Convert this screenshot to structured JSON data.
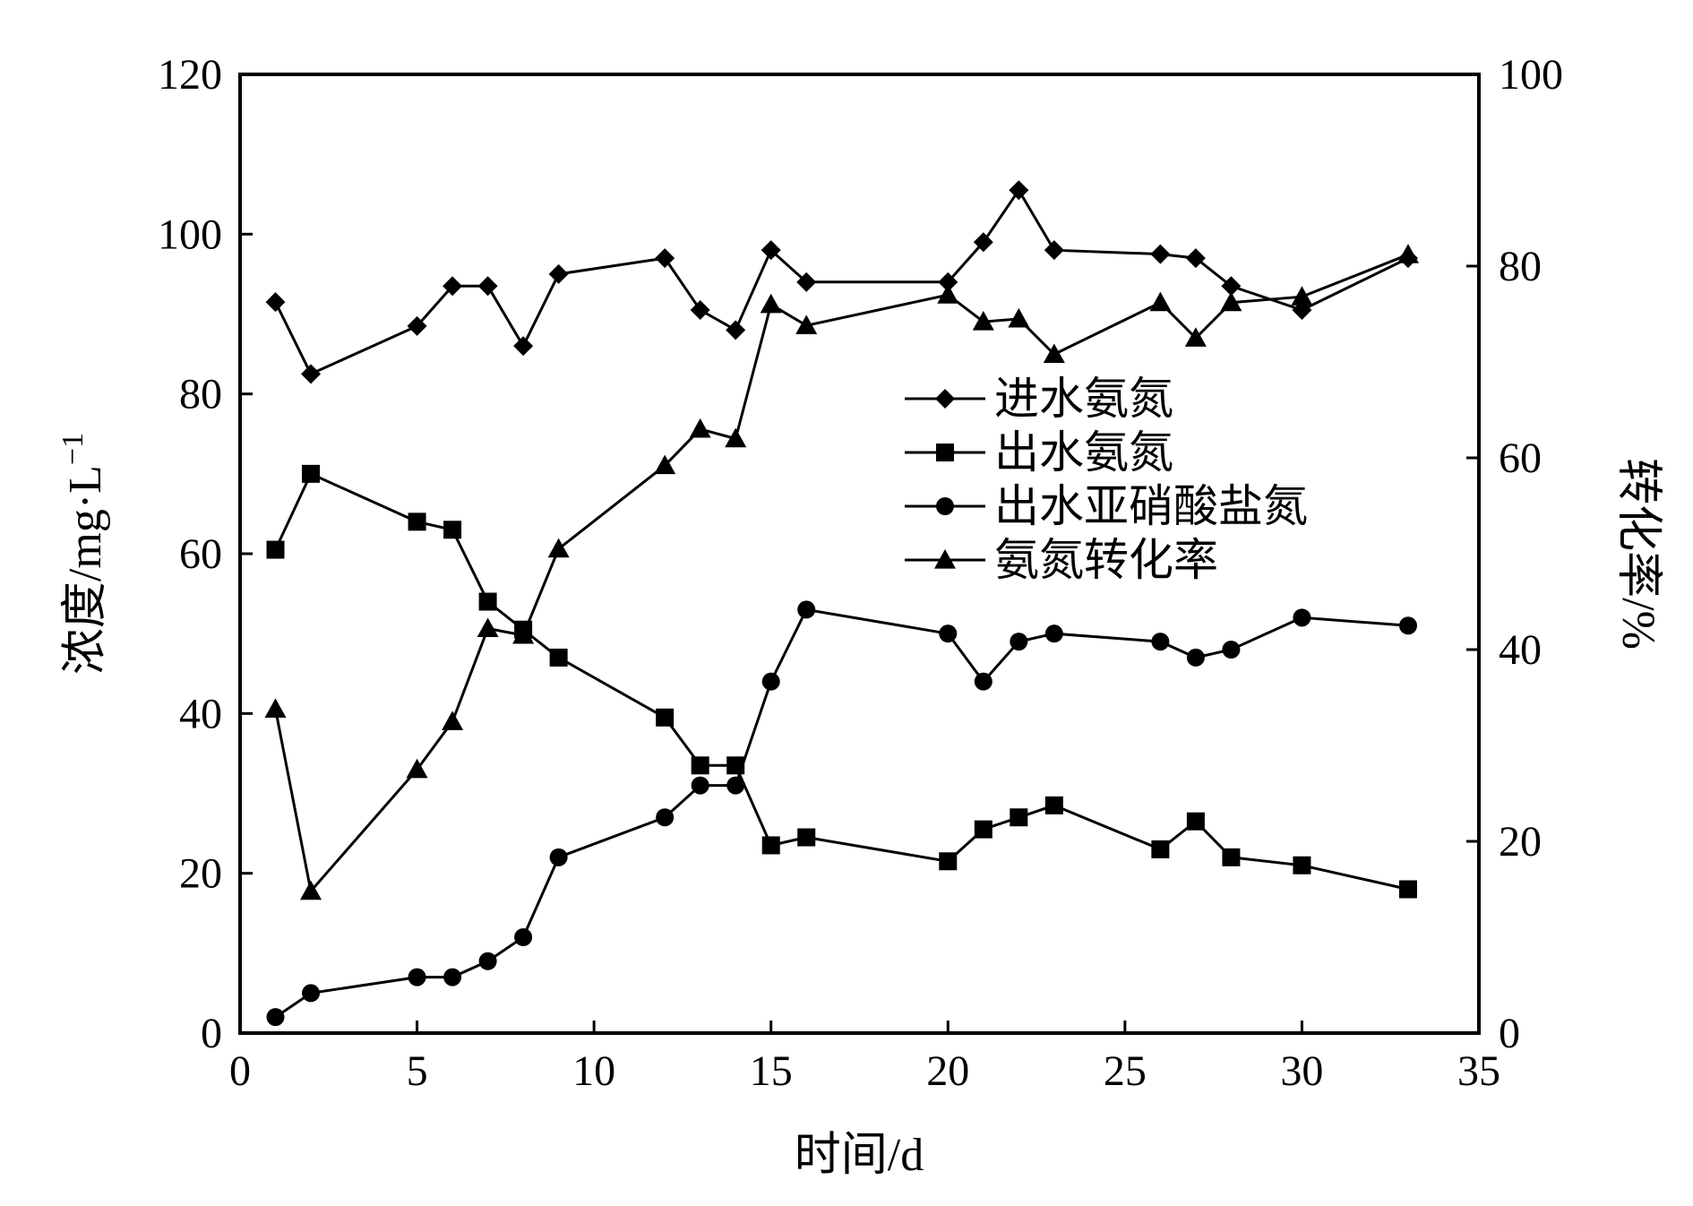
{
  "chart_data": {
    "type": "line",
    "xlabel": "时间/d",
    "ylabel_left": "浓度/mg·L",
    "ylabel_left_sup": "−1",
    "ylabel_right": "转化率/%",
    "xlim": [
      0,
      35
    ],
    "ylim_left": [
      0,
      120
    ],
    "ylim_right": [
      0,
      100
    ],
    "xticks": [
      0,
      5,
      10,
      15,
      20,
      25,
      30,
      35
    ],
    "yticks_left": [
      0,
      20,
      40,
      60,
      80,
      100,
      120
    ],
    "yticks_right": [
      0,
      20,
      40,
      60,
      80,
      100
    ],
    "grid": false,
    "legend_position": "center-right",
    "series": [
      {
        "name": "进水氨氮",
        "marker": "diamond",
        "axis": "left",
        "points": [
          [
            1,
            91.5
          ],
          [
            2,
            82.5
          ],
          [
            5,
            88.5
          ],
          [
            6,
            93.5
          ],
          [
            7,
            93.5
          ],
          [
            8,
            86
          ],
          [
            9,
            95
          ],
          [
            12,
            97
          ],
          [
            13,
            90.5
          ],
          [
            14,
            88
          ],
          [
            15,
            98
          ],
          [
            16,
            94
          ],
          [
            20,
            94
          ],
          [
            21,
            99
          ],
          [
            22,
            105.5
          ],
          [
            23,
            98
          ],
          [
            26,
            97.5
          ],
          [
            27,
            97
          ],
          [
            28,
            93.5
          ],
          [
            30,
            90.5
          ],
          [
            33,
            97
          ]
        ]
      },
      {
        "name": "出水氨氮",
        "marker": "square",
        "axis": "left",
        "points": [
          [
            1,
            60.5
          ],
          [
            2,
            70
          ],
          [
            5,
            64
          ],
          [
            6,
            63
          ],
          [
            7,
            54
          ],
          [
            8,
            50.5
          ],
          [
            9,
            47
          ],
          [
            12,
            39.5
          ],
          [
            13,
            33.5
          ],
          [
            14,
            33.5
          ],
          [
            15,
            23.5
          ],
          [
            16,
            24.5
          ],
          [
            20,
            21.5
          ],
          [
            21,
            25.5
          ],
          [
            22,
            27
          ],
          [
            23,
            28.5
          ],
          [
            26,
            23
          ],
          [
            27,
            26.5
          ],
          [
            28,
            22
          ],
          [
            30,
            21
          ],
          [
            33,
            18
          ]
        ]
      },
      {
        "name": "出水亚硝酸盐氮",
        "marker": "circle",
        "axis": "left",
        "points": [
          [
            1,
            2
          ],
          [
            2,
            5
          ],
          [
            5,
            7
          ],
          [
            6,
            7
          ],
          [
            7,
            9
          ],
          [
            8,
            12
          ],
          [
            9,
            22
          ],
          [
            12,
            27
          ],
          [
            13,
            31
          ],
          [
            14,
            31
          ],
          [
            15,
            44
          ],
          [
            16,
            53
          ],
          [
            20,
            50
          ],
          [
            21,
            44
          ],
          [
            22,
            49
          ],
          [
            23,
            50
          ],
          [
            26,
            49
          ],
          [
            27,
            47
          ],
          [
            28,
            48
          ],
          [
            30,
            52
          ],
          [
            33,
            51
          ]
        ]
      },
      {
        "name": "氨氮转化率",
        "marker": "triangle",
        "axis": "right",
        "points": [
          [
            1,
            33.8
          ],
          [
            2,
            14.8
          ],
          [
            5,
            27.5
          ],
          [
            6,
            32.5
          ],
          [
            7,
            42.2
          ],
          [
            8,
            41.5
          ],
          [
            9,
            50.5
          ],
          [
            12,
            59.2
          ],
          [
            13,
            63
          ],
          [
            14,
            62
          ],
          [
            15,
            76
          ],
          [
            16,
            73.8
          ],
          [
            20,
            77
          ],
          [
            21,
            74.2
          ],
          [
            22,
            74.5
          ],
          [
            23,
            70.8
          ],
          [
            26,
            76.2
          ],
          [
            27,
            72.5
          ],
          [
            28,
            76.2
          ],
          [
            30,
            76.8
          ],
          [
            33,
            81.2
          ]
        ]
      }
    ]
  }
}
